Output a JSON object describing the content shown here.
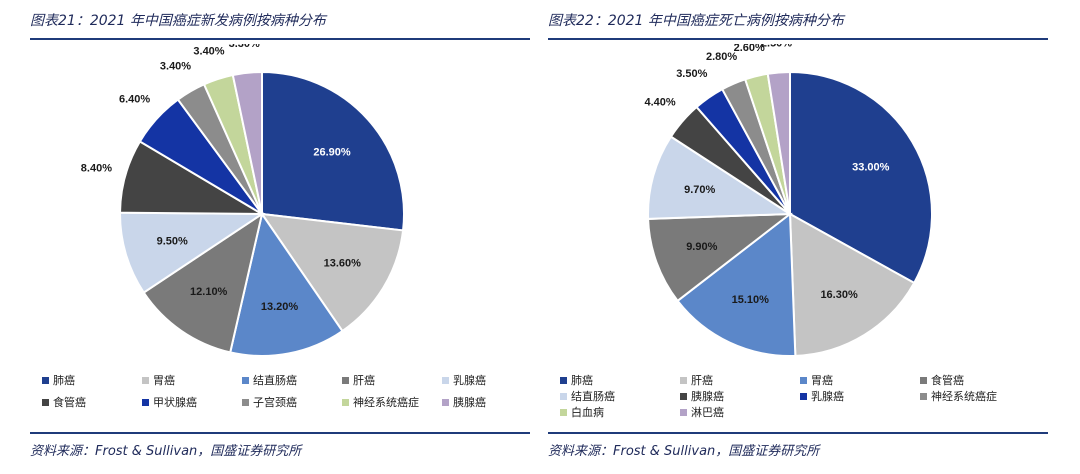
{
  "charts": [
    {
      "title": "图表21：2021 年中国癌症新发病例按病种分布",
      "source": "资料来源：Frost & Sullivan，国盛证券研究所"
    },
    {
      "title": "图表22：2021 年中国癌症死亡病例按病种分布",
      "source": "资料来源：Frost & Sullivan，国盛证券研究所"
    }
  ],
  "chart_data": [
    {
      "type": "pie",
      "title": "图表21：2021 年中国癌症新发病例按病种分布",
      "categories": [
        "肺癌",
        "胃癌",
        "结直肠癌",
        "肝癌",
        "乳腺癌",
        "食管癌",
        "甲状腺癌",
        "子宫颈癌",
        "神经系统癌症",
        "胰腺癌"
      ],
      "values": [
        26.9,
        13.6,
        13.2,
        12.1,
        9.5,
        8.4,
        6.4,
        3.4,
        3.4,
        3.3
      ],
      "labels": [
        "26.90%",
        "13.60%",
        "13.20%",
        "12.10%",
        "9.50%",
        "8.40%",
        "6.40%",
        "3.40%",
        "3.40%",
        "3.30%"
      ],
      "colors": [
        "#1f3f8f",
        "#c4c4c4",
        "#5b87c9",
        "#7a7a7a",
        "#c9d6ea",
        "#444444",
        "#1434a4",
        "#8c8c8c",
        "#c3d69b",
        "#b3a2c7"
      ],
      "legend_position": "bottom"
    },
    {
      "type": "pie",
      "title": "图表22：2021 年中国癌症死亡病例按病种分布",
      "categories": [
        "肺癌",
        "肝癌",
        "胃癌",
        "食管癌",
        "结直肠癌",
        "胰腺癌",
        "乳腺癌",
        "神经系统癌症",
        "白血病",
        "淋巴癌"
      ],
      "values": [
        33.0,
        16.3,
        15.1,
        9.9,
        9.7,
        4.4,
        3.5,
        2.8,
        2.6,
        2.5
      ],
      "labels": [
        "33.00%",
        "16.30%",
        "15.10%",
        "9.90%",
        "9.70%",
        "4.40%",
        "3.50%",
        "2.80%",
        "2.60%",
        "2.50%"
      ],
      "colors": [
        "#1f3f8f",
        "#c4c4c4",
        "#5b87c9",
        "#7a7a7a",
        "#c9d6ea",
        "#444444",
        "#1434a4",
        "#8c8c8c",
        "#c3d69b",
        "#b3a2c7"
      ],
      "legend_position": "bottom"
    }
  ]
}
